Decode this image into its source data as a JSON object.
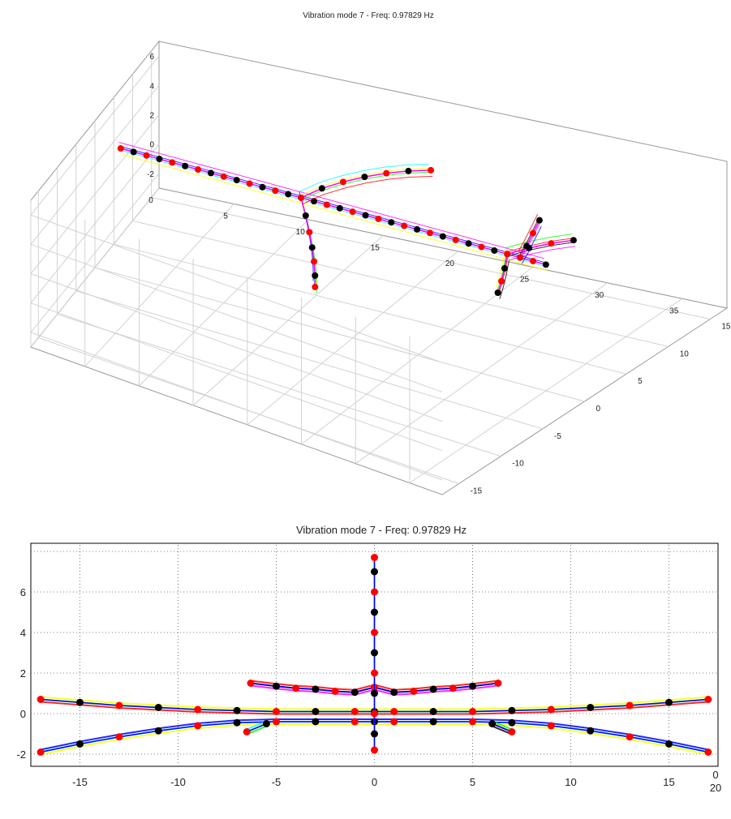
{
  "window": {
    "background": "#ffffff"
  },
  "chart_data": [
    {
      "type": "scatter",
      "view": "3d-isometric",
      "title": "Vibration mode 7 - Freq: 0.97829 Hz",
      "xlabel": "",
      "ylabel": "",
      "zlabel": "",
      "x_ticks": [
        "0",
        "5",
        "10",
        "15",
        "20",
        "25",
        "30",
        "35"
      ],
      "y_ticks": [
        "-15",
        "-10",
        "-5",
        "0",
        "5",
        "10",
        "15"
      ],
      "z_ticks": [
        "-2",
        "0",
        "2",
        "4",
        "6"
      ],
      "xlim": [
        0,
        38
      ],
      "ylim": [
        -17,
        17
      ],
      "zlim": [
        -3,
        7
      ],
      "grid": true,
      "series": [
        {
          "values": [
            [
              2,
              0,
              5.6
            ],
            [
              3,
              0,
              5.6
            ],
            [
              4,
              0,
              5.6
            ],
            [
              5,
              0,
              5.6
            ],
            [
              6,
              0,
              5.6
            ],
            [
              7,
              0,
              5.6
            ],
            [
              8,
              0,
              5.6
            ],
            [
              9,
              0,
              5.6
            ],
            [
              10,
              0,
              5.6
            ],
            [
              11,
              0,
              5.6
            ],
            [
              12,
              0,
              5.6
            ],
            [
              13,
              0,
              5.6
            ],
            [
              14,
              0,
              5.6
            ],
            [
              15,
              0,
              5.6
            ],
            [
              16,
              0,
              5.6
            ],
            [
              17,
              0,
              5.6
            ],
            [
              18,
              0,
              5.6
            ],
            [
              19,
              0,
              5.6
            ],
            [
              20,
              0,
              5.6
            ],
            [
              21,
              0,
              5.6
            ],
            [
              22,
              0,
              5.6
            ],
            [
              23,
              0,
              5.6
            ],
            [
              24,
              0,
              5.6
            ],
            [
              25,
              0,
              5.6
            ],
            [
              26,
              0,
              5.6
            ],
            [
              27,
              0,
              5.6
            ],
            [
              28,
              0,
              5.6
            ],
            [
              29,
              0,
              5.6
            ],
            [
              30,
              0,
              5.6
            ],
            [
              31,
              0,
              5.6
            ],
            [
              32,
              0,
              5.6
            ],
            [
              33,
              0,
              5.6
            ],
            [
              34,
              0,
              5.6
            ],
            [
              35,
              0,
              5.6
            ]
          ]
        },
        {
          "values": [
            [
              16,
              0,
              5.6
            ],
            [
              17.5,
              -2.5,
              5.6
            ],
            [
              19,
              -5,
              5.7
            ],
            [
              20.5,
              -7.5,
              5.9
            ],
            [
              22,
              -10,
              6.2
            ],
            [
              23.5,
              -12.5,
              6.5
            ],
            [
              25,
              -15,
              7
            ]
          ]
        },
        {
          "values": [
            [
              16,
              0,
              5.6
            ],
            [
              16.5,
              2.5,
              5.5
            ],
            [
              17,
              5,
              5.2
            ],
            [
              17.5,
              7.5,
              4.8
            ],
            [
              18,
              10,
              4.3
            ],
            [
              18.5,
              12.5,
              3.7
            ],
            [
              19,
              15,
              3
            ]
          ]
        },
        {
          "values": [
            [
              32,
              0,
              5.6
            ],
            [
              33,
              -2,
              5.6
            ],
            [
              34,
              -4,
              5.7
            ],
            [
              35,
              -6,
              5.9
            ]
          ]
        },
        {
          "values": [
            [
              32,
              0,
              5.6
            ],
            [
              32.5,
              2,
              5.4
            ],
            [
              33,
              4,
              5.1
            ],
            [
              33.5,
              6,
              4.7
            ]
          ]
        },
        {
          "values": [
            [
              33,
              0,
              5.6
            ],
            [
              33.5,
              0,
              6.5
            ],
            [
              34,
              0,
              7.5
            ],
            [
              34.5,
              0,
              8.5
            ]
          ]
        }
      ]
    },
    {
      "type": "scatter",
      "view": "front",
      "title": "Vibration mode 7 - Freq: 0.97829 Hz",
      "xlabel": "",
      "ylabel": "",
      "x_ticks": [
        "-15",
        "-10",
        "-5",
        "0",
        "5",
        "10",
        "15"
      ],
      "y_ticks": [
        "-2",
        "0",
        "2",
        "4",
        "6"
      ],
      "corner_ticks": [
        "0",
        "20"
      ],
      "xlim": [
        -17.5,
        17.5
      ],
      "ylim": [
        -2.6,
        8.4
      ],
      "grid": true,
      "series": [
        {
          "values": [
            [
              -17,
              -1.9
            ],
            [
              -15,
              -1.5
            ],
            [
              -13,
              -1.15
            ],
            [
              -11,
              -0.85
            ],
            [
              -9,
              -0.6
            ],
            [
              -7,
              -0.45
            ],
            [
              -5,
              -0.4
            ],
            [
              -3,
              -0.4
            ],
            [
              -1,
              -0.4
            ],
            [
              0,
              -0.4
            ],
            [
              1,
              -0.4
            ],
            [
              3,
              -0.4
            ],
            [
              5,
              -0.4
            ],
            [
              7,
              -0.45
            ],
            [
              9,
              -0.6
            ],
            [
              11,
              -0.85
            ],
            [
              13,
              -1.15
            ],
            [
              15,
              -1.5
            ],
            [
              17,
              -1.9
            ]
          ]
        },
        {
          "values": [
            [
              -17,
              0.7
            ],
            [
              -15,
              0.55
            ],
            [
              -13,
              0.4
            ],
            [
              -11,
              0.3
            ],
            [
              -9,
              0.2
            ],
            [
              -7,
              0.15
            ],
            [
              -5,
              0.1
            ],
            [
              -3,
              0.1
            ],
            [
              -1,
              0.1
            ],
            [
              0,
              0.1
            ],
            [
              1,
              0.1
            ],
            [
              3,
              0.1
            ],
            [
              5,
              0.1
            ],
            [
              7,
              0.15
            ],
            [
              9,
              0.2
            ],
            [
              11,
              0.3
            ],
            [
              13,
              0.4
            ],
            [
              15,
              0.55
            ],
            [
              17,
              0.7
            ]
          ]
        },
        {
          "values": [
            [
              -6.3,
              1.5
            ],
            [
              -5,
              1.35
            ],
            [
              -4,
              1.25
            ],
            [
              -3,
              1.2
            ],
            [
              -2,
              1.1
            ],
            [
              -1,
              1.05
            ],
            [
              0,
              1.3
            ],
            [
              1,
              1.05
            ],
            [
              2,
              1.1
            ],
            [
              3,
              1.2
            ],
            [
              4,
              1.25
            ],
            [
              5,
              1.35
            ],
            [
              6.3,
              1.5
            ]
          ]
        },
        {
          "values": [
            [
              0,
              -1.8
            ],
            [
              0,
              -1
            ],
            [
              0,
              0
            ],
            [
              0,
              1
            ],
            [
              0,
              2
            ],
            [
              0,
              3
            ],
            [
              0,
              4
            ],
            [
              0,
              5
            ],
            [
              0,
              6
            ],
            [
              0,
              7
            ],
            [
              0,
              7.7
            ]
          ]
        },
        {
          "values": [
            [
              -6.5,
              -0.9
            ],
            [
              -5.5,
              -0.5
            ]
          ]
        },
        {
          "values": [
            [
              7,
              -0.9
            ],
            [
              6,
              -0.5
            ]
          ]
        }
      ]
    }
  ]
}
